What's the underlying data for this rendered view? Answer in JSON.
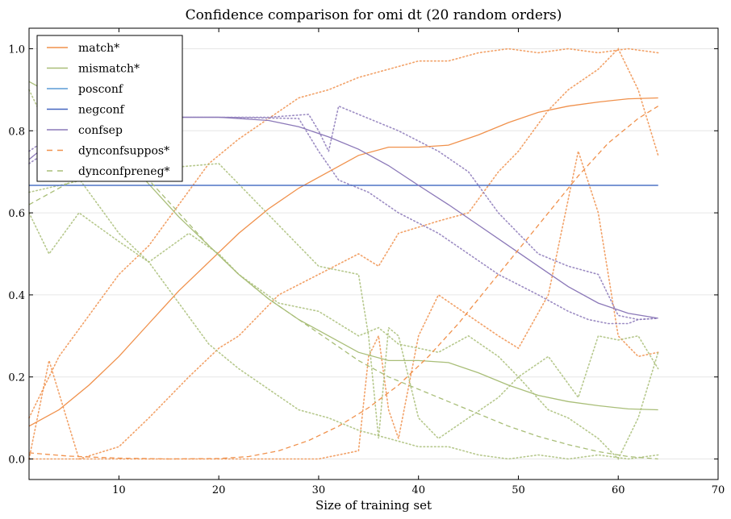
{
  "chart_data": {
    "type": "line",
    "title": "Confidence comparison for omi dt (20 random orders)",
    "xlabel": "Size of training set",
    "ylabel": "",
    "xlim": [
      1,
      70
    ],
    "ylim": [
      -0.05,
      1.05
    ],
    "xticks": [
      10,
      20,
      30,
      40,
      50,
      60,
      70
    ],
    "yticks": [
      "0.0",
      "0.2",
      "0.4",
      "0.6",
      "0.8",
      "1.0"
    ],
    "grid": "horizontal",
    "legend_position": "top-left",
    "series": [
      {
        "name": "match*",
        "color": "#f0914c",
        "style": "solid",
        "x": [
          1,
          4,
          7,
          10,
          13,
          16,
          19,
          22,
          25,
          28,
          31,
          34,
          37,
          40,
          43,
          46,
          49,
          52,
          55,
          58,
          61,
          64
        ],
        "y": [
          0.08,
          0.12,
          0.18,
          0.25,
          0.33,
          0.41,
          0.48,
          0.55,
          0.61,
          0.66,
          0.7,
          0.74,
          0.76,
          0.76,
          0.765,
          0.79,
          0.82,
          0.845,
          0.86,
          0.87,
          0.878,
          0.88
        ]
      },
      {
        "name": "mismatch*",
        "color": "#a9be78",
        "style": "solid",
        "x": [
          1,
          4,
          7,
          10,
          13,
          16,
          19,
          22,
          25,
          28,
          31,
          34,
          37,
          40,
          43,
          46,
          49,
          52,
          55,
          58,
          61,
          64
        ],
        "y": [
          0.92,
          0.88,
          0.82,
          0.75,
          0.67,
          0.59,
          0.52,
          0.45,
          0.39,
          0.34,
          0.3,
          0.26,
          0.24,
          0.24,
          0.235,
          0.21,
          0.18,
          0.155,
          0.14,
          0.13,
          0.122,
          0.12
        ]
      },
      {
        "name": "posconf",
        "color": "#5b9bd5",
        "style": "solid",
        "x": [
          1,
          64
        ],
        "y": [
          0.667,
          0.667
        ]
      },
      {
        "name": "negconf",
        "color": "#4466c0",
        "style": "solid",
        "x": [
          1,
          64
        ],
        "y": [
          0.667,
          0.667
        ]
      },
      {
        "name": "confsep",
        "color": "#8b78b8",
        "style": "solid",
        "x": [
          1,
          4,
          7,
          10,
          15,
          20,
          25,
          28,
          31,
          34,
          37,
          40,
          43,
          46,
          49,
          52,
          55,
          58,
          61,
          64
        ],
        "y": [
          0.73,
          0.79,
          0.825,
          0.833,
          0.833,
          0.833,
          0.825,
          0.81,
          0.785,
          0.755,
          0.715,
          0.667,
          0.62,
          0.57,
          0.52,
          0.47,
          0.42,
          0.38,
          0.355,
          0.343
        ]
      },
      {
        "name": "dynconfsuppos*",
        "color": "#f0914c",
        "style": "dashed",
        "x": [
          1,
          5,
          10,
          15,
          20,
          23,
          26,
          29,
          32,
          35,
          38,
          41,
          44,
          47,
          50,
          53,
          56,
          59,
          62,
          64
        ],
        "y": [
          0.015,
          0.007,
          0.002,
          0,
          0.001,
          0.006,
          0.02,
          0.045,
          0.08,
          0.125,
          0.18,
          0.25,
          0.33,
          0.42,
          0.51,
          0.6,
          0.69,
          0.77,
          0.83,
          0.86
        ]
      },
      {
        "name": "dynconfpreneg*",
        "color": "#a9be78",
        "style": "dashed",
        "x": [
          1,
          4,
          7,
          10,
          13,
          16,
          19,
          22,
          25,
          28,
          31,
          34,
          37,
          40,
          43,
          46,
          49,
          52,
          55,
          58,
          61,
          64
        ],
        "y": [
          0.62,
          0.66,
          0.7,
          0.72,
          0.68,
          0.6,
          0.52,
          0.45,
          0.39,
          0.34,
          0.29,
          0.24,
          0.2,
          0.17,
          0.14,
          0.11,
          0.08,
          0.055,
          0.035,
          0.018,
          0.006,
          0.0
        ]
      }
    ],
    "runs": [
      {
        "color": "#f0914c",
        "x": [
          1,
          4,
          7,
          10,
          13,
          16,
          19,
          22,
          25,
          28,
          31,
          34,
          37,
          40,
          43,
          46,
          49,
          52,
          55,
          58,
          61,
          64
        ],
        "y": [
          0.1,
          0.25,
          0.35,
          0.45,
          0.52,
          0.62,
          0.72,
          0.78,
          0.83,
          0.88,
          0.9,
          0.93,
          0.95,
          0.97,
          0.97,
          0.99,
          1.0,
          0.99,
          1.0,
          0.99,
          1.0,
          0.99
        ]
      },
      {
        "color": "#f0914c",
        "x": [
          1,
          3,
          6,
          10,
          13,
          17,
          20,
          22,
          26,
          30,
          34,
          36,
          38,
          42,
          45,
          48,
          50,
          53,
          55,
          58,
          60,
          62,
          64
        ],
        "y": [
          0.0,
          0.24,
          0.0,
          0.03,
          0.1,
          0.2,
          0.27,
          0.3,
          0.4,
          0.45,
          0.5,
          0.47,
          0.55,
          0.58,
          0.6,
          0.7,
          0.75,
          0.85,
          0.9,
          0.95,
          1.0,
          0.9,
          0.74
        ]
      },
      {
        "color": "#f0914c",
        "x": [
          1,
          10,
          20,
          30,
          34,
          35,
          36,
          37,
          38,
          40,
          42,
          45,
          48,
          50,
          53,
          56,
          58,
          60,
          62,
          64
        ],
        "y": [
          0.0,
          0.0,
          0.0,
          0.0,
          0.02,
          0.25,
          0.3,
          0.12,
          0.05,
          0.3,
          0.4,
          0.35,
          0.3,
          0.27,
          0.4,
          0.75,
          0.6,
          0.3,
          0.25,
          0.26
        ]
      },
      {
        "color": "#a9be78",
        "x": [
          1,
          4,
          7,
          10,
          13,
          16,
          19,
          22,
          25,
          28,
          31,
          34,
          37,
          40,
          43,
          46,
          49,
          52,
          55,
          58,
          61,
          64
        ],
        "y": [
          0.9,
          0.75,
          0.65,
          0.55,
          0.48,
          0.38,
          0.28,
          0.22,
          0.17,
          0.12,
          0.1,
          0.07,
          0.05,
          0.03,
          0.03,
          0.01,
          0.0,
          0.01,
          0.0,
          0.01,
          0.0,
          0.01
        ]
      },
      {
        "color": "#a9be78",
        "x": [
          1,
          3,
          6,
          10,
          13,
          17,
          20,
          22,
          26,
          30,
          34,
          36,
          38,
          42,
          45,
          48,
          50,
          53,
          55,
          58,
          60,
          62,
          64
        ],
        "y": [
          0.6,
          0.5,
          0.6,
          0.53,
          0.48,
          0.55,
          0.5,
          0.45,
          0.38,
          0.36,
          0.3,
          0.32,
          0.28,
          0.26,
          0.3,
          0.25,
          0.2,
          0.12,
          0.1,
          0.05,
          0.0,
          0.1,
          0.26
        ]
      },
      {
        "color": "#a9be78",
        "x": [
          1,
          10,
          20,
          30,
          34,
          35,
          36,
          37,
          38,
          40,
          42,
          45,
          48,
          50,
          53,
          56,
          58,
          60,
          62,
          64
        ],
        "y": [
          0.65,
          0.7,
          0.72,
          0.47,
          0.45,
          0.3,
          0.05,
          0.32,
          0.3,
          0.1,
          0.05,
          0.1,
          0.15,
          0.2,
          0.25,
          0.15,
          0.3,
          0.29,
          0.3,
          0.22
        ]
      },
      {
        "color": "#8b78b8",
        "x": [
          1,
          4,
          8,
          15,
          25,
          29,
          30,
          31,
          32,
          35,
          38,
          42,
          45,
          48,
          52,
          55,
          58,
          60,
          62,
          64
        ],
        "y": [
          0.75,
          0.8,
          0.833,
          0.833,
          0.833,
          0.84,
          0.8,
          0.75,
          0.86,
          0.83,
          0.8,
          0.75,
          0.7,
          0.6,
          0.5,
          0.47,
          0.45,
          0.35,
          0.34,
          0.343
        ]
      },
      {
        "color": "#8b78b8",
        "x": [
          1,
          8,
          20,
          28,
          30,
          32,
          35,
          38,
          42,
          45,
          48,
          52,
          55,
          57,
          59,
          61,
          62,
          64
        ],
        "y": [
          0.72,
          0.833,
          0.833,
          0.83,
          0.75,
          0.68,
          0.65,
          0.6,
          0.55,
          0.5,
          0.45,
          0.4,
          0.36,
          0.34,
          0.33,
          0.33,
          0.34,
          0.343
        ]
      }
    ]
  }
}
